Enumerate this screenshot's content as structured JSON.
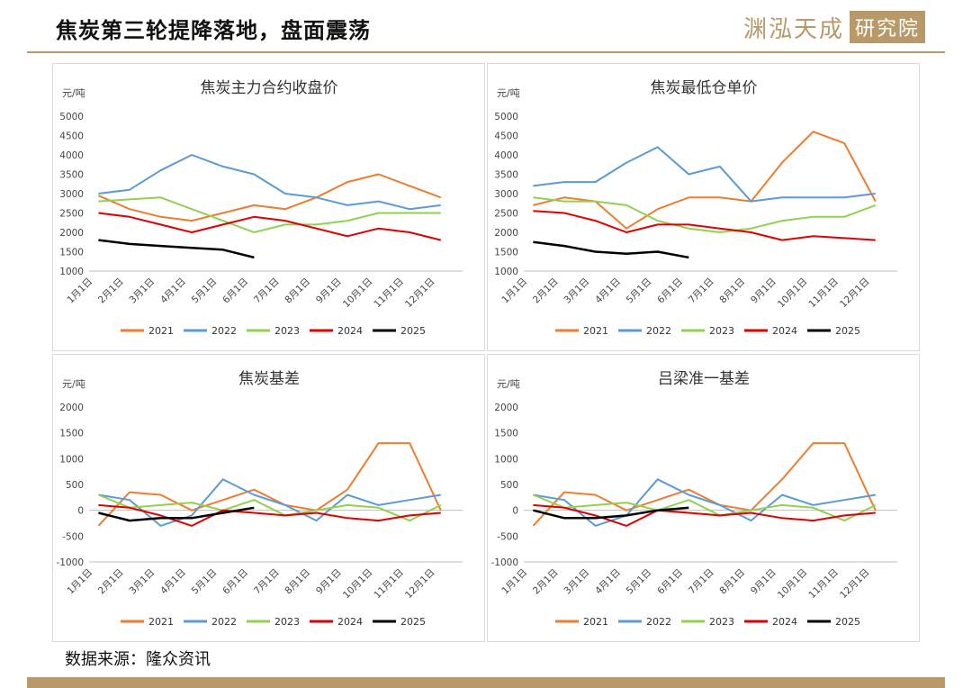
{
  "page": {
    "title": "焦炭第三轮提降落地，盘面震荡",
    "logo_text": "渊泓天成",
    "logo_box_text": "研究院",
    "source": "数据来源：隆众资讯"
  },
  "colors": {
    "accent": "#b89a6a",
    "2021": "#ed7d31",
    "2022": "#5b9bd5",
    "2023": "#92d050",
    "2024": "#e00000",
    "2025": "#000000"
  },
  "chart_data": [
    {
      "type": "line",
      "title": "焦炭主力合约收盘价",
      "unit": "元/吨",
      "ylim": [
        1000,
        5000
      ],
      "yticks": [
        1000,
        1500,
        2000,
        2500,
        3000,
        3500,
        4000,
        4500,
        5000
      ],
      "xticks": [
        "1月1日",
        "2月1日",
        "3月1日",
        "4月1日",
        "5月1日",
        "6月1日",
        "7月1日",
        "8月1日",
        "9月1日",
        "10月1日",
        "11月1日",
        "12月1日"
      ],
      "legend": [
        "2021",
        "2022",
        "2023",
        "2024",
        "2025"
      ],
      "series": [
        {
          "name": "2021",
          "y_months": [
            2950,
            2600,
            2400,
            2300,
            2500,
            2700,
            2600,
            2900,
            3300,
            3500,
            3200,
            2900
          ]
        },
        {
          "name": "2022",
          "y_months": [
            3000,
            3100,
            3600,
            4000,
            3700,
            3500,
            3000,
            2900,
            2700,
            2800,
            2600,
            2700
          ]
        },
        {
          "name": "2023",
          "y_months": [
            2800,
            2850,
            2900,
            2600,
            2300,
            2000,
            2200,
            2200,
            2300,
            2500,
            2500,
            2500
          ]
        },
        {
          "name": "2024",
          "y_months": [
            2500,
            2400,
            2200,
            2000,
            2200,
            2400,
            2300,
            2100,
            1900,
            2100,
            2000,
            1800
          ]
        },
        {
          "name": "2025",
          "y_months": [
            1800,
            1700,
            1650,
            1600,
            1550,
            1350
          ]
        }
      ]
    },
    {
      "type": "line",
      "title": "焦炭最低仓单价",
      "unit": "元/吨",
      "ylim": [
        1000,
        5000
      ],
      "yticks": [
        1000,
        1500,
        2000,
        2500,
        3000,
        3500,
        4000,
        4500,
        5000
      ],
      "xticks": [
        "1月1日",
        "2月1日",
        "3月1日",
        "4月1日",
        "5月1日",
        "6月1日",
        "7月1日",
        "8月1日",
        "9月1日",
        "10月1日",
        "11月1日",
        "12月1日"
      ],
      "legend": [
        "2021",
        "2022",
        "2023",
        "2024",
        "2025"
      ],
      "series": [
        {
          "name": "2021",
          "y_months": [
            2700,
            2900,
            2800,
            2100,
            2600,
            2900,
            2900,
            2800,
            3800,
            4600,
            4300,
            2800
          ]
        },
        {
          "name": "2022",
          "y_months": [
            3200,
            3300,
            3300,
            3800,
            4200,
            3500,
            3700,
            2800,
            2900,
            2900,
            2900,
            3000
          ]
        },
        {
          "name": "2023",
          "y_months": [
            2900,
            2800,
            2800,
            2700,
            2300,
            2100,
            2000,
            2100,
            2300,
            2400,
            2400,
            2700
          ]
        },
        {
          "name": "2024",
          "y_months": [
            2550,
            2500,
            2300,
            2000,
            2200,
            2200,
            2100,
            2000,
            1800,
            1900,
            1850,
            1800
          ]
        },
        {
          "name": "2025",
          "y_months": [
            1750,
            1650,
            1500,
            1450,
            1500,
            1350
          ]
        }
      ]
    },
    {
      "type": "line",
      "title": "焦炭基差",
      "unit": "元/吨",
      "ylim": [
        -1000,
        2000
      ],
      "yticks": [
        -1000,
        -500,
        0,
        500,
        1000,
        1500,
        2000
      ],
      "xticks": [
        "1月1日",
        "2月1日",
        "3月1日",
        "4月1日",
        "5月1日",
        "6月1日",
        "7月1日",
        "8月1日",
        "9月1日",
        "10月1日",
        "11月1日",
        "12月1日"
      ],
      "legend": [
        "2021",
        "2022",
        "2023",
        "2024",
        "2025"
      ],
      "series": [
        {
          "name": "2021",
          "y_months": [
            -300,
            350,
            300,
            0,
            200,
            400,
            100,
            0,
            400,
            1300,
            1300,
            0
          ]
        },
        {
          "name": "2022",
          "y_months": [
            300,
            200,
            -300,
            -100,
            600,
            300,
            100,
            -200,
            300,
            100,
            200,
            300
          ]
        },
        {
          "name": "2023",
          "y_months": [
            300,
            50,
            100,
            150,
            0,
            200,
            -100,
            0,
            100,
            50,
            -200,
            100
          ]
        },
        {
          "name": "2024",
          "y_months": [
            100,
            50,
            -100,
            -300,
            0,
            -50,
            -100,
            -50,
            -150,
            -200,
            -100,
            -50
          ]
        },
        {
          "name": "2025",
          "y_months": [
            -50,
            -200,
            -150,
            -150,
            -50,
            50
          ]
        }
      ]
    },
    {
      "type": "line",
      "title": "吕梁准一基差",
      "unit": "元/吨",
      "ylim": [
        -1000,
        2000
      ],
      "yticks": [
        -1000,
        -500,
        0,
        500,
        1000,
        1500,
        2000
      ],
      "xticks": [
        "1月1日",
        "2月1日",
        "3月1日",
        "4月1日",
        "5月1日",
        "6月1日",
        "7月1日",
        "8月1日",
        "9月1日",
        "10月1日",
        "11月1日",
        "12月1日"
      ],
      "legend": [
        "2021",
        "2022",
        "2023",
        "2024",
        "2025"
      ],
      "series": [
        {
          "name": "2021",
          "y_months": [
            -300,
            350,
            300,
            0,
            200,
            400,
            100,
            0,
            600,
            1300,
            1300,
            0
          ]
        },
        {
          "name": "2022",
          "y_months": [
            300,
            200,
            -300,
            -100,
            600,
            300,
            100,
            -200,
            300,
            100,
            200,
            300
          ]
        },
        {
          "name": "2023",
          "y_months": [
            300,
            50,
            100,
            150,
            0,
            200,
            -100,
            0,
            100,
            50,
            -200,
            100
          ]
        },
        {
          "name": "2024",
          "y_months": [
            100,
            50,
            -100,
            -300,
            0,
            -50,
            -100,
            -50,
            -150,
            -200,
            -100,
            -50
          ]
        },
        {
          "name": "2025",
          "y_months": [
            0,
            -150,
            -150,
            -100,
            0,
            50
          ]
        }
      ]
    }
  ]
}
